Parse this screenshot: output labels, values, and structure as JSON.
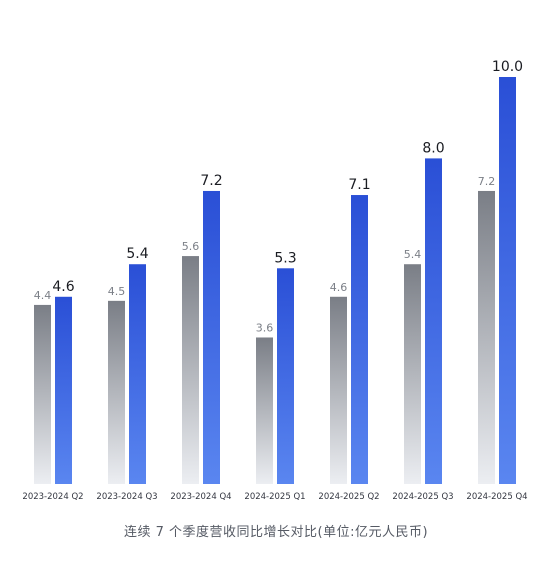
{
  "chart_data": {
    "type": "bar",
    "title": "",
    "caption": "连续 7 个季度营收同比增长对比(单位:亿元人民币)",
    "categories": [
      "2023-2024 Q2",
      "2023-2024 Q3",
      "2023-2024 Q4",
      "2024-2025 Q1",
      "2024-2025 Q2",
      "2024-2025 Q3",
      "2024-2025 Q4"
    ],
    "series": [
      {
        "values": [
          4.4,
          4.5,
          5.6,
          3.6,
          4.6,
          5.4,
          7.2
        ],
        "labels": [
          "4.4",
          "4.5",
          "5.6",
          "3.6",
          "4.6",
          "5.4",
          "7.2"
        ],
        "color_top": "#7a7e86",
        "color_bottom": "#eceef2"
      },
      {
        "values": [
          4.6,
          5.4,
          7.2,
          5.3,
          7.1,
          8.0,
          10.0
        ],
        "labels": [
          "4.6",
          "5.4",
          "7.2",
          "5.3",
          "7.1",
          "8.0",
          "10.0"
        ],
        "color_top": "#2a4fd6",
        "color_bottom": "#5a86f0"
      }
    ],
    "ylim": [
      0,
      10.0
    ],
    "grid": false,
    "legend": "none"
  }
}
